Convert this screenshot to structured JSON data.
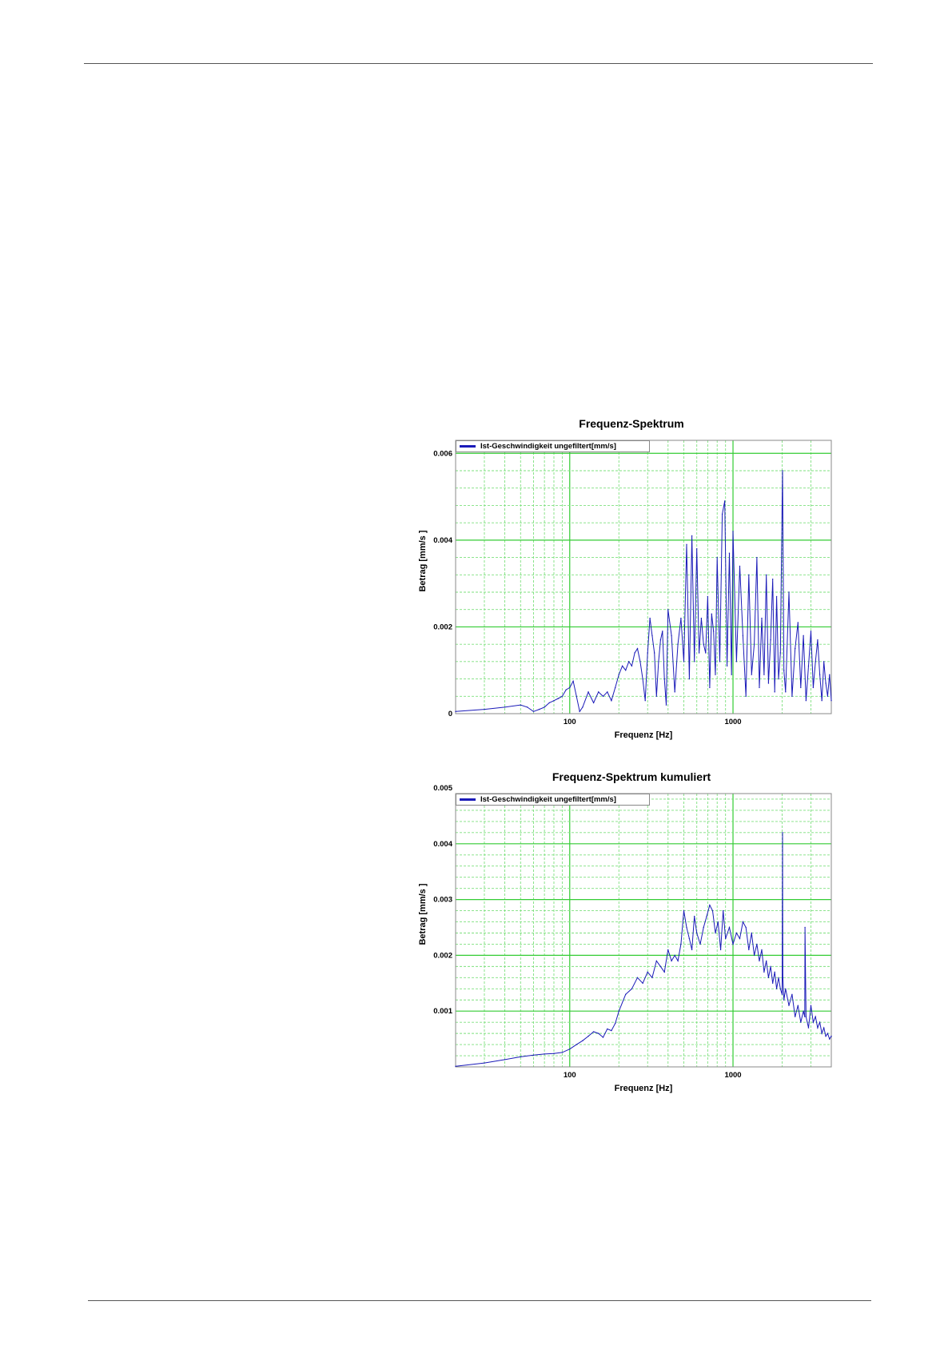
{
  "chart_data": [
    {
      "type": "line",
      "title": "Frequenz-Spektrum",
      "xlabel": "Frequenz [Hz]",
      "ylabel": "Betrag [mm/s ]",
      "x_scale": "log",
      "xlim": [
        20,
        4000
      ],
      "ylim": [
        0,
        0.0063
      ],
      "x_ticks": [
        {
          "value": 100,
          "label": "100"
        },
        {
          "value": 1000,
          "label": "1000"
        }
      ],
      "y_ticks": [
        {
          "value": 0,
          "label": "0"
        },
        {
          "value": 0.002,
          "label": "0.002"
        },
        {
          "value": 0.004,
          "label": "0.004"
        },
        {
          "value": 0.006,
          "label": "0.006"
        }
      ],
      "grid": true,
      "legend_position": "top-left",
      "colors": {
        "grid_major": "#33cc33",
        "grid_minor": "#7ee07e",
        "line": "#1a1ab8"
      },
      "series": [
        {
          "name": "Ist-Geschwindigkeit ungefiltert[mm/s]",
          "x": [
            20,
            30,
            40,
            50,
            55,
            60,
            65,
            70,
            75,
            80,
            85,
            90,
            95,
            100,
            105,
            110,
            115,
            120,
            130,
            140,
            150,
            160,
            170,
            180,
            190,
            200,
            210,
            220,
            230,
            240,
            250,
            260,
            270,
            280,
            290,
            300,
            310,
            320,
            330,
            340,
            350,
            360,
            370,
            380,
            390,
            400,
            420,
            440,
            460,
            480,
            500,
            520,
            540,
            560,
            580,
            600,
            620,
            640,
            660,
            680,
            700,
            720,
            740,
            760,
            780,
            800,
            830,
            860,
            890,
            920,
            950,
            980,
            1000,
            1050,
            1100,
            1150,
            1200,
            1250,
            1300,
            1350,
            1400,
            1450,
            1500,
            1550,
            1600,
            1650,
            1700,
            1750,
            1800,
            1850,
            1900,
            1950,
            2000,
            2010,
            2050,
            2100,
            2200,
            2300,
            2400,
            2500,
            2600,
            2700,
            2800,
            2900,
            3000,
            3100,
            3200,
            3300,
            3400,
            3500,
            3600,
            3700,
            3800,
            3900,
            4000
          ],
          "y": [
            5e-05,
            0.0001,
            0.00015,
            0.0002,
            0.00015,
            5e-05,
            0.0001,
            0.00015,
            0.00025,
            0.0003,
            0.00035,
            0.0004,
            0.00055,
            0.0006,
            0.00075,
            0.0004,
            5e-05,
            0.00015,
            0.0005,
            0.00025,
            0.0005,
            0.0004,
            0.0005,
            0.0003,
            0.0006,
            0.0009,
            0.0011,
            0.001,
            0.0012,
            0.0011,
            0.0014,
            0.0015,
            0.0012,
            0.0008,
            0.0003,
            0.0014,
            0.0022,
            0.0018,
            0.0014,
            0.0004,
            0.0012,
            0.0017,
            0.0019,
            0.0008,
            0.0002,
            0.0024,
            0.0018,
            0.0005,
            0.0016,
            0.0022,
            0.0012,
            0.0039,
            0.0008,
            0.0041,
            0.0012,
            0.0038,
            0.0014,
            0.0022,
            0.0016,
            0.0014,
            0.0027,
            0.0006,
            0.0023,
            0.0019,
            0.0009,
            0.0036,
            0.0012,
            0.0046,
            0.0049,
            0.0011,
            0.0037,
            0.0009,
            0.0042,
            0.0012,
            0.0034,
            0.0018,
            0.0004,
            0.0032,
            0.0009,
            0.0016,
            0.0036,
            0.0006,
            0.0022,
            0.0009,
            0.0032,
            0.0007,
            0.0017,
            0.0031,
            0.0005,
            0.0027,
            0.0008,
            0.0014,
            0.0049,
            0.0056,
            0.001,
            0.0005,
            0.0028,
            0.0004,
            0.0015,
            0.0021,
            0.0006,
            0.0018,
            0.0003,
            0.0011,
            0.0019,
            0.0006,
            0.0012,
            0.0017,
            0.0009,
            0.0003,
            0.0012,
            0.0007,
            0.0004,
            0.0009,
            0.0003
          ]
        }
      ]
    },
    {
      "type": "line",
      "title": "Frequenz-Spektrum kumuliert",
      "xlabel": "Frequenz [Hz]",
      "ylabel": "Betrag [mm/s ]",
      "x_scale": "log",
      "xlim": [
        20,
        4000
      ],
      "ylim": [
        0,
        0.0049
      ],
      "x_ticks": [
        {
          "value": 100,
          "label": "100"
        },
        {
          "value": 1000,
          "label": "1000"
        }
      ],
      "y_ticks": [
        {
          "value": 0.001,
          "label": "0.001"
        },
        {
          "value": 0.002,
          "label": "0.002"
        },
        {
          "value": 0.003,
          "label": "0.003"
        },
        {
          "value": 0.004,
          "label": "0.004"
        },
        {
          "value": 0.005,
          "label": "0.005"
        }
      ],
      "grid": true,
      "legend_position": "top-left",
      "colors": {
        "grid_major": "#33cc33",
        "grid_minor": "#7ee07e",
        "line": "#1a1ab8"
      },
      "series": [
        {
          "name": "Ist-Geschwindigkeit ungefiltert[mm/s]",
          "x": [
            20,
            30,
            40,
            50,
            60,
            70,
            80,
            90,
            100,
            110,
            120,
            130,
            140,
            150,
            160,
            170,
            180,
            190,
            200,
            220,
            240,
            260,
            280,
            300,
            320,
            340,
            360,
            380,
            400,
            420,
            440,
            460,
            480,
            500,
            520,
            540,
            560,
            580,
            600,
            630,
            660,
            690,
            720,
            750,
            780,
            810,
            840,
            870,
            900,
            950,
            1000,
            1050,
            1100,
            1150,
            1200,
            1250,
            1300,
            1350,
            1400,
            1450,
            1500,
            1550,
            1600,
            1650,
            1700,
            1750,
            1800,
            1850,
            1900,
            1950,
            2000,
            2010,
            2020,
            2050,
            2100,
            2200,
            2300,
            2400,
            2500,
            2600,
            2700,
            2750,
            2760,
            2800,
            2900,
            3000,
            3100,
            3200,
            3300,
            3400,
            3500,
            3600,
            3700,
            3800,
            3900,
            4000
          ],
          "y": [
            1e-05,
            7e-05,
            0.00013,
            0.00018,
            0.00021,
            0.00023,
            0.00024,
            0.00026,
            0.00032,
            0.0004,
            0.00047,
            0.00055,
            0.00063,
            0.0006,
            0.00053,
            0.00068,
            0.00065,
            0.00078,
            0.001,
            0.0013,
            0.0014,
            0.0016,
            0.0015,
            0.0017,
            0.0016,
            0.0019,
            0.0018,
            0.0017,
            0.0021,
            0.0019,
            0.002,
            0.0019,
            0.0022,
            0.0028,
            0.0025,
            0.0023,
            0.0021,
            0.0027,
            0.0024,
            0.0022,
            0.0025,
            0.0027,
            0.0029,
            0.0028,
            0.0024,
            0.0026,
            0.0021,
            0.0028,
            0.0023,
            0.0025,
            0.0022,
            0.0024,
            0.0023,
            0.0026,
            0.0025,
            0.0021,
            0.0024,
            0.002,
            0.0022,
            0.0019,
            0.0021,
            0.0017,
            0.0019,
            0.0016,
            0.0018,
            0.0015,
            0.0017,
            0.0014,
            0.0016,
            0.0014,
            0.0013,
            0.0042,
            0.0016,
            0.0012,
            0.0014,
            0.0011,
            0.0013,
            0.0009,
            0.0011,
            0.0008,
            0.001,
            0.0009,
            0.0025,
            0.0009,
            0.0007,
            0.0011,
            0.0008,
            0.0009,
            0.0007,
            0.0008,
            0.0006,
            0.0007,
            0.00055,
            0.0006,
            0.0005,
            0.00055
          ]
        }
      ]
    }
  ]
}
